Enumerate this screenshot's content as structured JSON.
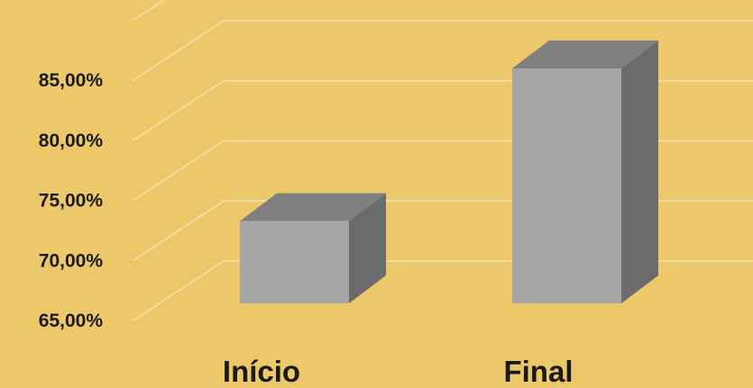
{
  "colors": {
    "background": "#EDC86A",
    "grid": "#F5E2A8",
    "bar_front": "#A6A6A6",
    "bar_top": "#7F7F7F",
    "bar_side": "#6B6B6B",
    "text": "#1A1A1A"
  },
  "chart_data": {
    "type": "bar",
    "title": "",
    "xlabel": "",
    "ylabel": "",
    "categories": [
      "Início",
      "Final"
    ],
    "values": [
      72,
      85
    ],
    "ylim": [
      65,
      85
    ],
    "y_ticks": [
      65,
      70,
      75,
      80,
      85
    ],
    "y_tick_labels": [
      "65,00%",
      "70,00%",
      "75,00%",
      "80,00%",
      "85,00%"
    ],
    "grid": true,
    "legend": "none",
    "style": "3d-column"
  }
}
